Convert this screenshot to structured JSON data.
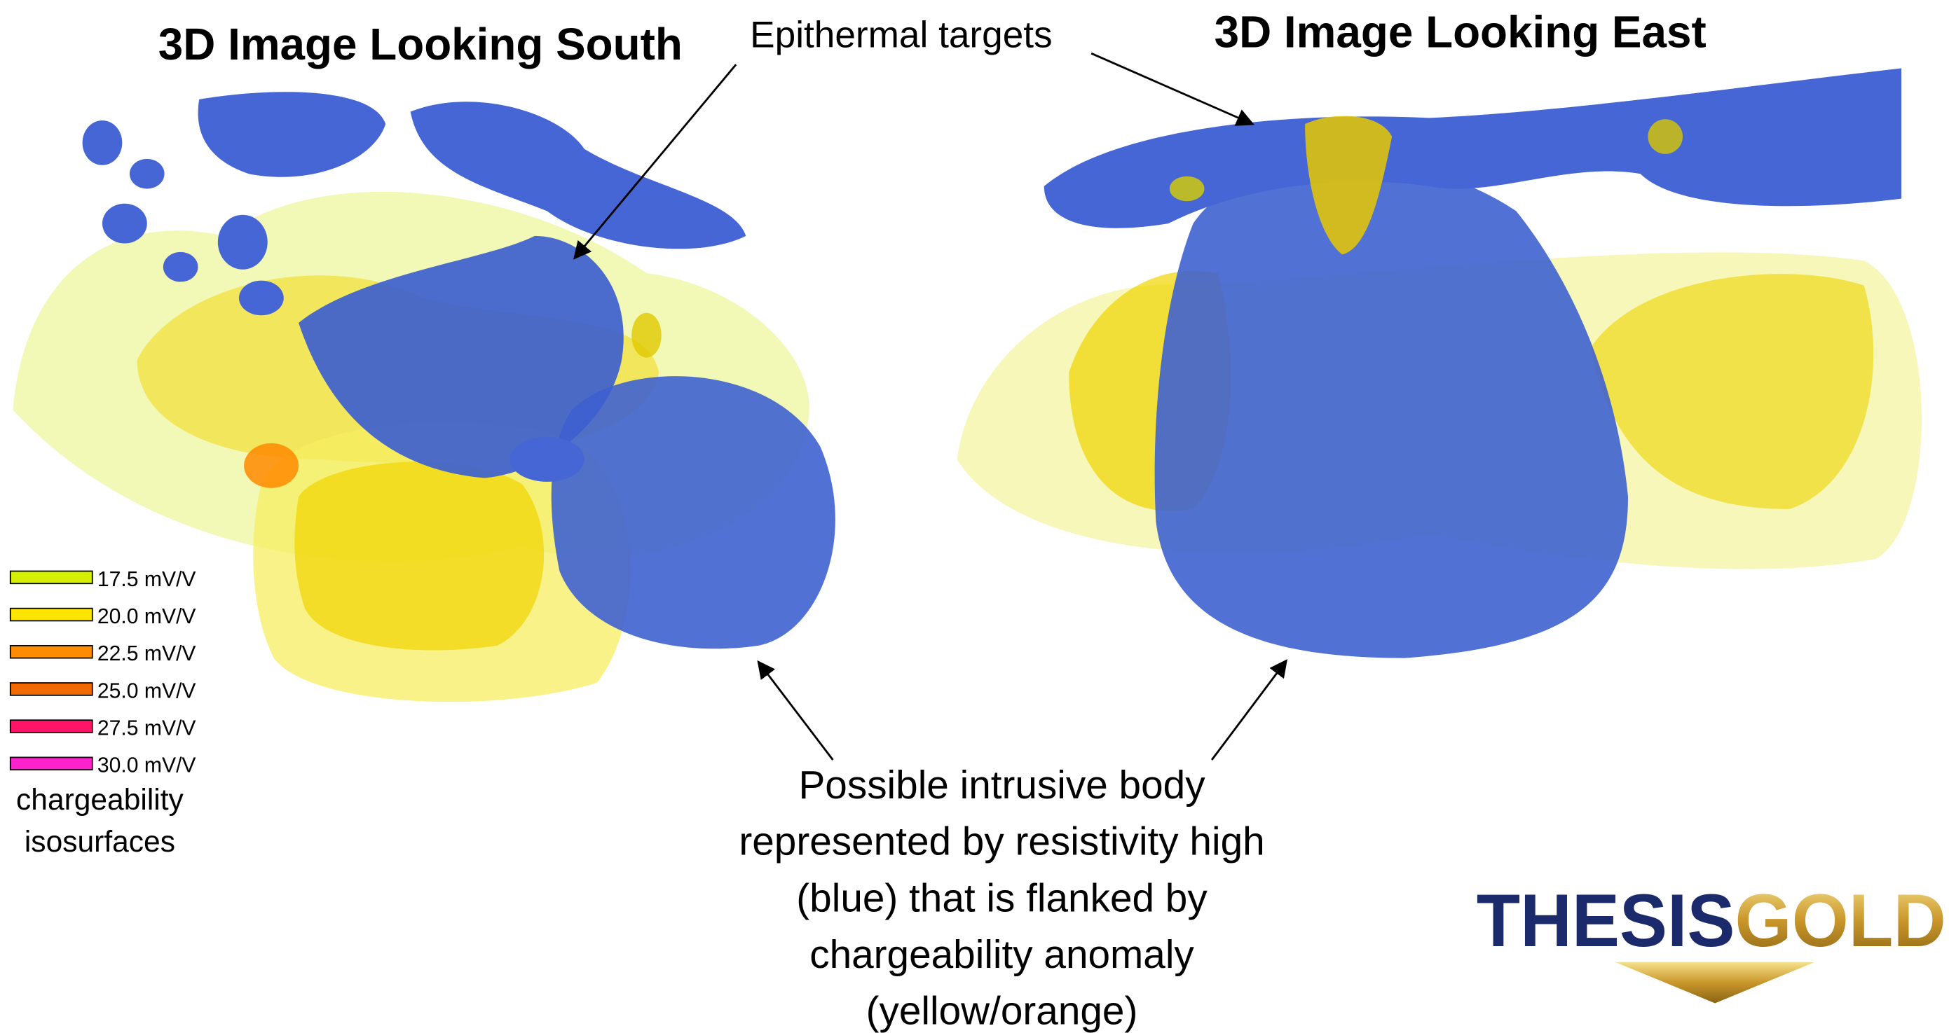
{
  "header": {
    "left_title": "3D Image Looking South",
    "right_title": "3D Image Looking East",
    "callout": "Epithermal targets"
  },
  "legend": {
    "entries": [
      "17.5 mV/V",
      "20.0 mV/V",
      "22.5 mV/V",
      "25.0 mV/V",
      "27.5 mV/V",
      "30.0 mV/V"
    ],
    "colors": [
      "#d4f000",
      "#ffe600",
      "#ff8c00",
      "#f06a00",
      "#ff1466",
      "#ff22cc"
    ],
    "caption": [
      "chargeability",
      "isosurfaces"
    ]
  },
  "description": {
    "lines": [
      "Possible intrusive body",
      "represented by resistivity high",
      "(blue) that is flanked by",
      "chargeability anomaly",
      "(yellow/orange)"
    ]
  },
  "logo": {
    "part1": "THESIS",
    "part2": "GOLD"
  }
}
